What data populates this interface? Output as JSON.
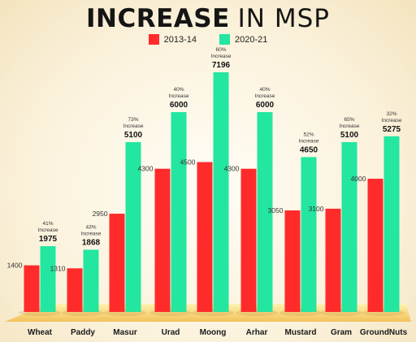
{
  "title_bold": "INCREASE",
  "title_light": "IN MSP",
  "colors": {
    "series_2013": "#ff2b2b",
    "series_2021": "#23e6a0"
  },
  "chart_data": {
    "type": "bar",
    "title": "INCREASE IN MSP",
    "categories": [
      "Wheat",
      "Paddy",
      "Masur",
      "Urad",
      "Moong",
      "Arhar",
      "Mustard",
      "Gram",
      "GroundNuts"
    ],
    "series": [
      {
        "name": "2013-14",
        "values": [
          1400,
          1310,
          2950,
          4300,
          4500,
          4300,
          3050,
          3100,
          4000
        ]
      },
      {
        "name": "2020-21",
        "values": [
          1975,
          1868,
          5100,
          6000,
          7196,
          6000,
          4650,
          5100,
          5275
        ]
      }
    ],
    "increase_labels": [
      "41%",
      "43%",
      "73%",
      "40%",
      "60%",
      "40%",
      "52%",
      "65%",
      "32%"
    ],
    "increase_word": "Increase",
    "ylim": [
      0,
      7196
    ],
    "legend_position": "top-center",
    "grid": false
  }
}
